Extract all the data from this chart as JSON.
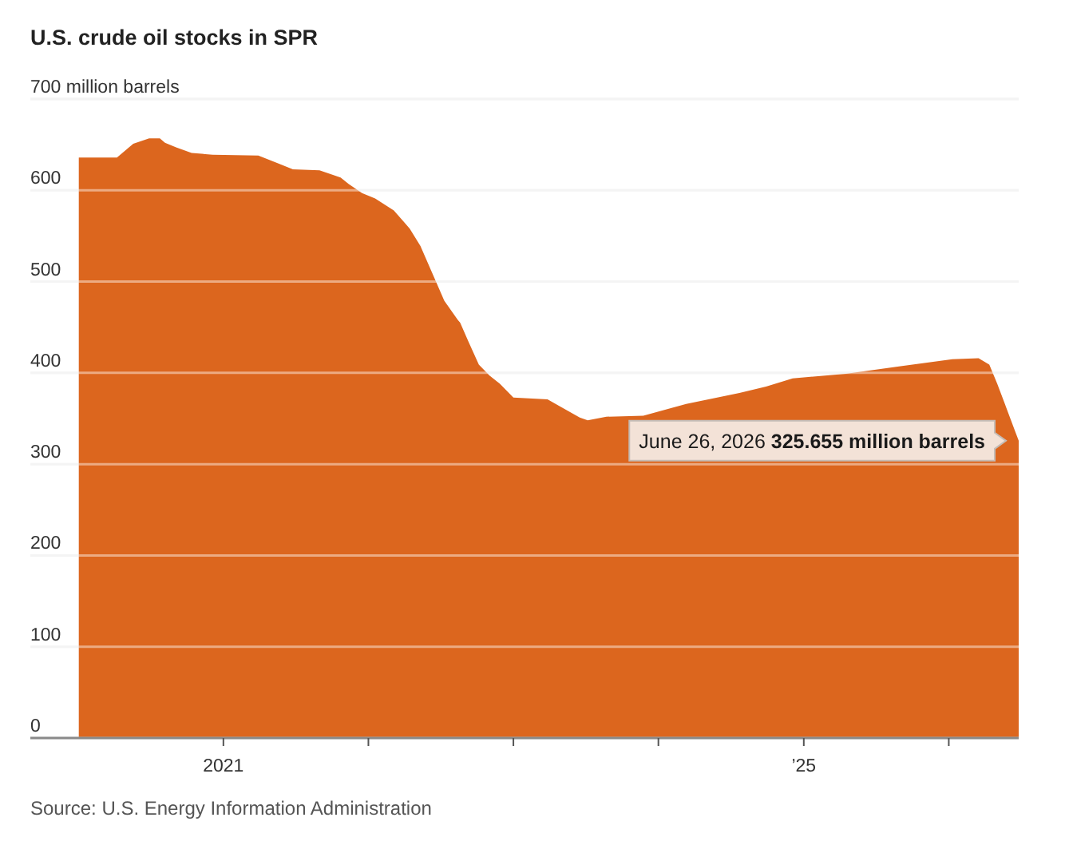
{
  "chart_data": {
    "type": "area",
    "title": "U.S. crude oil stocks in SPR",
    "x": [
      "2020-01-03",
      "2020-04-08",
      "2020-05-19",
      "2020-06-28",
      "2020-07-25",
      "2020-08-07",
      "2020-09-04",
      "2020-10-13",
      "2020-12-05",
      "2021-03-30",
      "2021-05-16",
      "2021-06-25",
      "2021-08-31",
      "2021-10-23",
      "2021-11-12",
      "2021-12-16",
      "2022-01-18",
      "2022-03-06",
      "2022-04-15",
      "2022-05-12",
      "2022-06-15",
      "2022-07-11",
      "2022-08-14",
      "2022-08-20",
      "2022-09-09",
      "2022-10-06",
      "2022-11-02",
      "2022-11-28",
      "2023-01-01",
      "2023-03-28",
      "2023-06-17",
      "2023-07-07",
      "2023-08-23",
      "2023-11-24",
      "2024-03-11",
      "2024-07-23",
      "2024-09-28",
      "2024-12-04",
      "2025-04-17",
      "2025-08-29",
      "2026-01-10",
      "2026-03-17",
      "2026-04-13",
      "2026-05-03",
      "2026-05-23",
      "2026-06-26"
    ],
    "values": [
      636,
      636,
      651,
      657,
      657,
      652,
      647,
      641,
      639,
      638,
      630,
      623,
      622,
      614,
      607,
      597,
      591,
      578,
      558,
      539,
      505,
      479,
      458,
      455,
      435,
      409,
      397,
      388,
      373,
      371,
      351,
      348,
      352,
      353,
      366,
      378,
      385,
      394,
      399,
      407,
      415,
      416,
      409,
      388,
      365,
      325.655
    ],
    "color": "#dc661e",
    "xlim": [
      "2019-09-03",
      "2026-06-26"
    ],
    "xticks": [
      {
        "value": "2021",
        "label": "2021"
      },
      {
        "value": "2022",
        "label": null
      },
      {
        "value": "2023",
        "label": null
      },
      {
        "value": "2024",
        "label": null
      },
      {
        "value": "2025",
        "label": "’25"
      },
      {
        "value": "2026",
        "label": null
      }
    ],
    "ylim": [
      0,
      700
    ],
    "yticks": [
      0,
      100,
      200,
      300,
      400,
      500,
      600,
      {
        "value": 700,
        "label": "700 million barrels"
      }
    ],
    "grid": "y",
    "annotations": [
      {
        "text": "June 26, 2026 325.655 million barrels",
        "x": "2026-06-26",
        "y": 325.655
      },
      "Source: U.S. Energy Information Administration"
    ]
  }
}
